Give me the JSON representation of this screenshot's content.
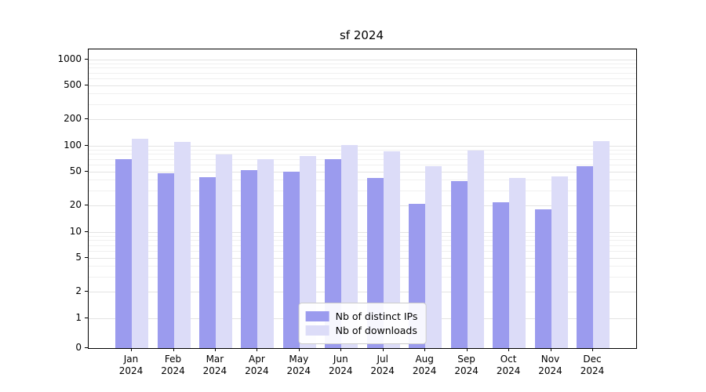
{
  "title": "sf 2024",
  "chart_data": {
    "type": "bar",
    "title": "sf 2024",
    "categories": [
      "Jan 2024",
      "Feb 2024",
      "Mar 2024",
      "Apr 2024",
      "May 2024",
      "Jun 2024",
      "Jul 2024",
      "Aug 2024",
      "Sep 2024",
      "Oct 2024",
      "Nov 2024",
      "Dec 2024"
    ],
    "series": [
      {
        "name": "Nb of distinct IPs",
        "color": "#9b9bee",
        "values": [
          70,
          48,
          43,
          52,
          50,
          70,
          42,
          21,
          39,
          22,
          18,
          58
        ]
      },
      {
        "name": "Nb of downloads",
        "color": "#dcdcf8",
        "values": [
          120,
          110,
          78,
          70,
          75,
          102,
          85,
          57,
          88,
          42,
          44,
          112
        ]
      }
    ],
    "xlabel": "",
    "ylabel": "",
    "yscale": "symlog",
    "y_ticks": [
      0,
      1,
      2,
      5,
      10,
      20,
      50,
      100,
      200,
      500,
      1000
    ],
    "ylim": [
      0,
      1300
    ],
    "grid": true,
    "legend_position": "lower center"
  },
  "legend": {
    "items": [
      {
        "label": "Nb of distinct IPs",
        "color": "#9b9bee"
      },
      {
        "label": "Nb of downloads",
        "color": "#dcdcf8"
      }
    ]
  }
}
